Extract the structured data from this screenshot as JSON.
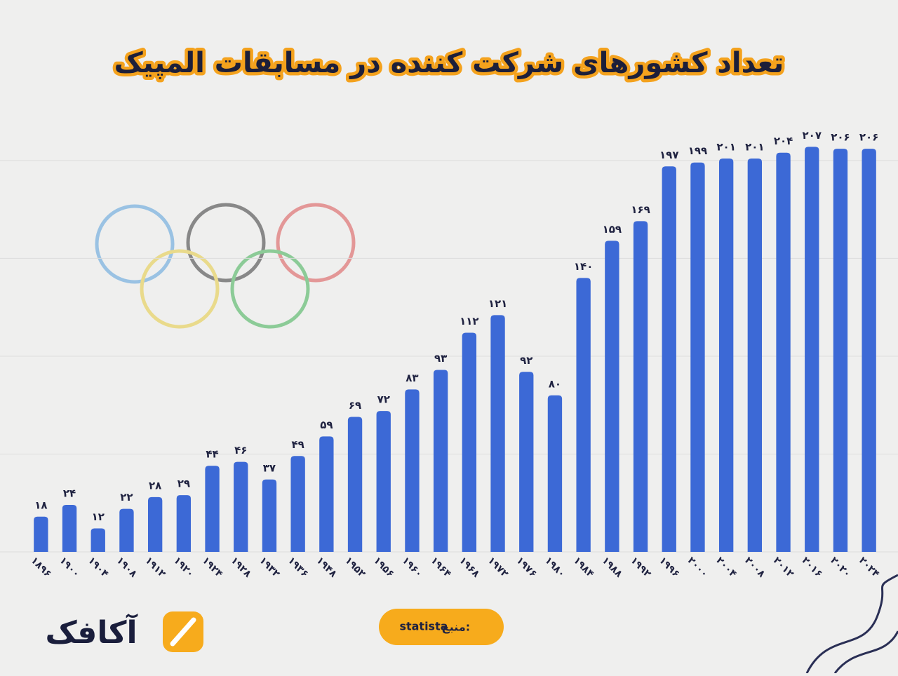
{
  "chart_data": {
    "type": "bar",
    "title": "تعداد کشورهای شرکت کننده در مسابقات المپیک",
    "categories": [
      "۱۸۹۶",
      "۱۹۰۰",
      "۱۹۰۴",
      "۱۹۰۸",
      "۱۹۱۲",
      "۱۹۲۰",
      "۱۹۲۴",
      "۱۹۲۸",
      "۱۹۳۲",
      "۱۹۳۶",
      "۱۹۴۸",
      "۱۹۵۲",
      "۱۹۵۶",
      "۱۹۶۰",
      "۱۹۶۴",
      "۱۹۶۸",
      "۱۹۷۲",
      "۱۹۷۶",
      "۱۹۸۰",
      "۱۹۸۴",
      "۱۹۸۸",
      "۱۹۹۲",
      "۱۹۹۶",
      "۲۰۰۰",
      "۲۰۰۴",
      "۲۰۰۸",
      "۲۰۱۲",
      "۲۰۱۶",
      "۲۰۲۰",
      "۲۰۲۴"
    ],
    "values": [
      18,
      24,
      12,
      22,
      28,
      29,
      44,
      46,
      37,
      49,
      59,
      69,
      72,
      83,
      93,
      112,
      121,
      92,
      80,
      140,
      159,
      169,
      197,
      199,
      201,
      201,
      204,
      207,
      206,
      206
    ],
    "value_labels": [
      "۱۸",
      "۲۴",
      "۱۲",
      "۲۲",
      "۲۸",
      "۲۹",
      "۴۴",
      "۴۶",
      "۳۷",
      "۴۹",
      "۵۹",
      "۶۹",
      "۷۲",
      "۸۳",
      "۹۳",
      "۱۱۲",
      "۱۲۱",
      "۹۲",
      "۸۰",
      "۱۴۰",
      "۱۵۹",
      "۱۶۹",
      "۱۹۷",
      "۱۹۹",
      "۲۰۱",
      "۲۰۱",
      "۲۰۴",
      "۲۰۷",
      "۲۰۶",
      "۲۰۶"
    ],
    "color": "#3c69d6",
    "ylim": [
      0,
      210
    ],
    "yticks": [
      0,
      50,
      100,
      150,
      200
    ],
    "grid": true,
    "source_label": "منبع:",
    "source": "statista",
    "brand": "آکافک"
  }
}
